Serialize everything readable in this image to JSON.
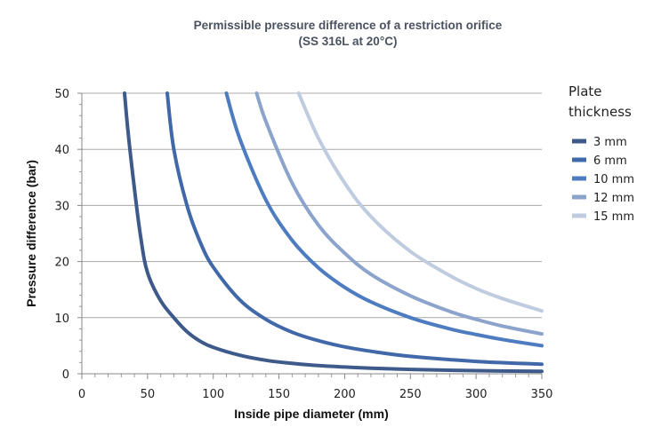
{
  "chart_data": {
    "type": "line",
    "title": "Permissible pressure difference of a restriction orifice",
    "subtitle": "(SS 316L at 20°C)",
    "xlabel": "Inside pipe diameter (mm)",
    "ylabel": "Pressure difference  (bar)",
    "xlim": [
      0,
      350
    ],
    "ylim": [
      0,
      50
    ],
    "xticks": [
      0,
      50,
      100,
      150,
      200,
      250,
      300,
      350
    ],
    "yticks": [
      0,
      10,
      20,
      30,
      40,
      50
    ],
    "grid": "horizontal",
    "legend_position": "right",
    "legend_title": [
      "Plate",
      "thickness"
    ],
    "x": [
      40,
      50,
      60,
      70,
      80,
      90,
      100,
      120,
      140,
      160,
      180,
      200,
      220,
      240,
      260,
      280,
      300,
      320,
      340,
      350
    ],
    "series": [
      {
        "name": "3 mm",
        "color": "#3d5a8a",
        "points": [
          [
            32.5,
            50
          ],
          [
            35,
            43.5
          ],
          [
            40,
            33
          ],
          [
            45,
            24
          ],
          [
            50,
            18
          ],
          [
            60,
            13
          ],
          [
            70,
            10
          ],
          [
            80,
            7.5
          ],
          [
            90,
            5.8
          ],
          [
            100,
            4.7
          ],
          [
            120,
            3.3
          ],
          [
            140,
            2.4
          ],
          [
            160,
            1.85
          ],
          [
            180,
            1.45
          ],
          [
            200,
            1.2
          ],
          [
            220,
            1.0
          ],
          [
            250,
            0.78
          ],
          [
            300,
            0.55
          ],
          [
            350,
            0.45
          ]
        ]
      },
      {
        "name": "6 mm",
        "color": "#4168a8",
        "points": [
          [
            65,
            50
          ],
          [
            70,
            40
          ],
          [
            80,
            30
          ],
          [
            90,
            23.5
          ],
          [
            100,
            19
          ],
          [
            120,
            13.2
          ],
          [
            140,
            9.7
          ],
          [
            160,
            7.4
          ],
          [
            180,
            5.9
          ],
          [
            200,
            4.8
          ],
          [
            220,
            4.0
          ],
          [
            250,
            3.1
          ],
          [
            300,
            2.2
          ],
          [
            350,
            1.7
          ]
        ]
      },
      {
        "name": "10 mm",
        "color": "#4d7cc0",
        "points": [
          [
            110,
            50
          ],
          [
            120,
            42
          ],
          [
            140,
            31
          ],
          [
            160,
            23.8
          ],
          [
            180,
            18.9
          ],
          [
            200,
            15.4
          ],
          [
            220,
            12.8
          ],
          [
            250,
            10.0
          ],
          [
            280,
            8.0
          ],
          [
            300,
            7.0
          ],
          [
            320,
            6.1
          ],
          [
            350,
            5.0
          ]
        ]
      },
      {
        "name": "12 mm",
        "color": "#8ca4cc",
        "points": [
          [
            133,
            50
          ],
          [
            140,
            45
          ],
          [
            160,
            34
          ],
          [
            180,
            26.5
          ],
          [
            200,
            21.5
          ],
          [
            220,
            17.7
          ],
          [
            250,
            13.9
          ],
          [
            280,
            11.1
          ],
          [
            300,
            9.7
          ],
          [
            320,
            8.5
          ],
          [
            350,
            7.1
          ]
        ]
      },
      {
        "name": "15 mm",
        "color": "#bfcce0",
        "points": [
          [
            165,
            50
          ],
          [
            180,
            42
          ],
          [
            200,
            34
          ],
          [
            220,
            28
          ],
          [
            250,
            21.8
          ],
          [
            280,
            17.5
          ],
          [
            300,
            15.2
          ],
          [
            320,
            13.4
          ],
          [
            350,
            11.2
          ]
        ]
      }
    ]
  }
}
